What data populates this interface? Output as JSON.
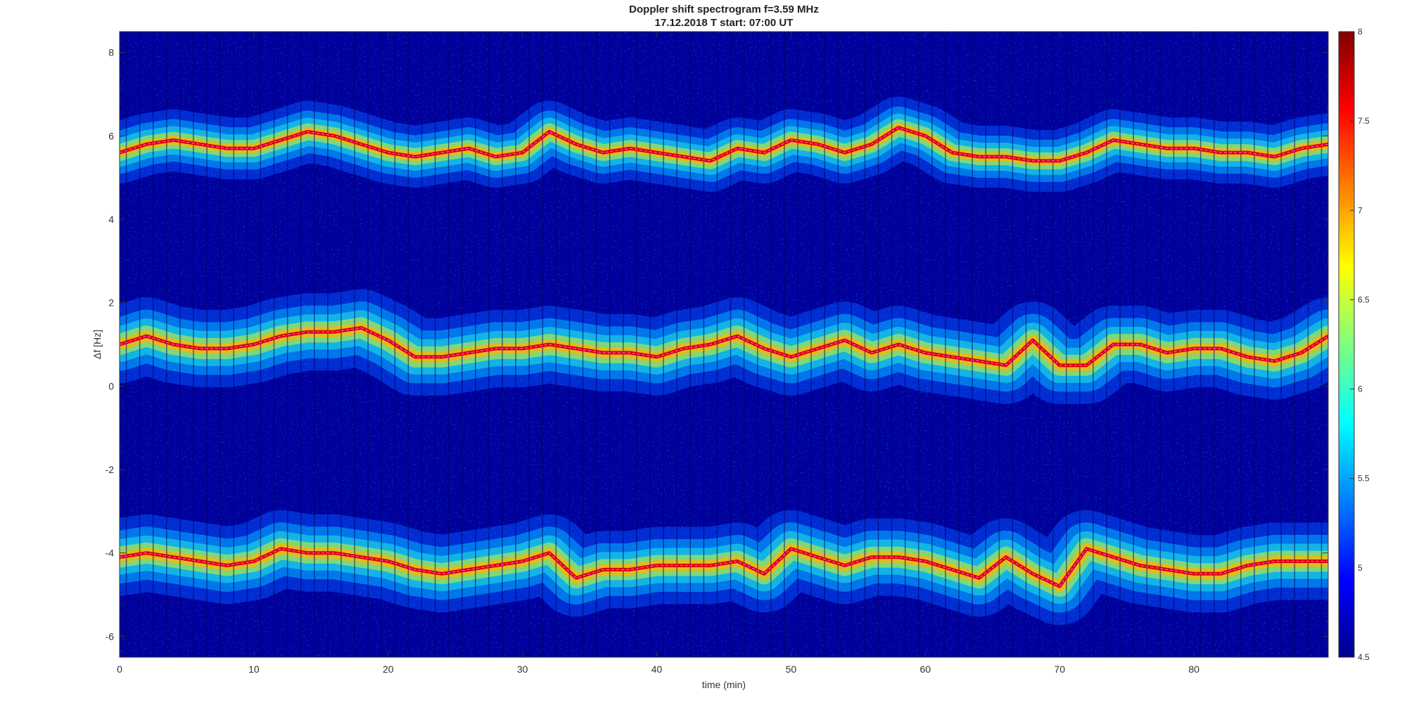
{
  "chart_data": {
    "type": "heatmap",
    "title": "Doppler shift spectrogram f=3.59 MHz",
    "subtitle": "17.12.2018   T start: 07:00 UT",
    "xlabel": "time (min)",
    "ylabel": "Δf [Hz]",
    "xlim": [
      0,
      90
    ],
    "ylim": [
      -6.5,
      8.5
    ],
    "xticks": [
      "0",
      "10",
      "20",
      "30",
      "40",
      "50",
      "60",
      "70",
      "80"
    ],
    "yticks": [
      "-6",
      "-4",
      "-2",
      "0",
      "2",
      "4",
      "6",
      "8"
    ],
    "colormap": "jet",
    "colorbar": {
      "range": [
        4.5,
        8
      ],
      "ticks": [
        "4.5",
        "5",
        "5.5",
        "6",
        "6.5",
        "7",
        "7.5",
        "8"
      ]
    },
    "grid": false,
    "series": [
      {
        "time": [
          0,
          2,
          4,
          6,
          8,
          10,
          12,
          14,
          16,
          18,
          20,
          22,
          24,
          26,
          28,
          30,
          32,
          34,
          36,
          38,
          40,
          42,
          44,
          46,
          48,
          50,
          52,
          54,
          56,
          58,
          60,
          62,
          64,
          66,
          68,
          70,
          72,
          74,
          76,
          78,
          80,
          82,
          84,
          86,
          88,
          90
        ],
        "values": [
          5.6,
          5.8,
          5.9,
          5.8,
          5.7,
          5.7,
          5.9,
          6.1,
          6.0,
          5.8,
          5.6,
          5.5,
          5.6,
          5.7,
          5.5,
          5.6,
          6.1,
          5.8,
          5.6,
          5.7,
          5.6,
          5.5,
          5.4,
          5.7,
          5.6,
          5.9,
          5.8,
          5.6,
          5.8,
          6.2,
          6.0,
          5.6,
          5.5,
          5.5,
          5.4,
          5.4,
          5.6,
          5.9,
          5.8,
          5.7,
          5.7,
          5.6,
          5.6,
          5.5,
          5.7,
          5.8
        ]
      },
      {
        "time": [
          0,
          2,
          4,
          6,
          8,
          10,
          12,
          14,
          16,
          18,
          20,
          22,
          24,
          26,
          28,
          30,
          32,
          34,
          36,
          38,
          40,
          42,
          44,
          46,
          48,
          50,
          52,
          54,
          56,
          58,
          60,
          62,
          64,
          66,
          68,
          70,
          72,
          74,
          76,
          78,
          80,
          82,
          84,
          86,
          88,
          90
        ],
        "values": [
          1.0,
          1.2,
          1.0,
          0.9,
          0.9,
          1.0,
          1.2,
          1.3,
          1.3,
          1.4,
          1.1,
          0.7,
          0.7,
          0.8,
          0.9,
          0.9,
          1.0,
          0.9,
          0.8,
          0.8,
          0.7,
          0.9,
          1.0,
          1.2,
          0.9,
          0.7,
          0.9,
          1.1,
          0.8,
          1.0,
          0.8,
          0.7,
          0.6,
          0.5,
          1.1,
          0.5,
          0.5,
          1.0,
          1.0,
          0.8,
          0.9,
          0.9,
          0.7,
          0.6,
          0.8,
          1.2
        ]
      },
      {
        "time": [
          0,
          2,
          4,
          6,
          8,
          10,
          12,
          14,
          16,
          18,
          20,
          22,
          24,
          26,
          28,
          30,
          32,
          34,
          36,
          38,
          40,
          42,
          44,
          46,
          48,
          50,
          52,
          54,
          56,
          58,
          60,
          62,
          64,
          66,
          68,
          70,
          72,
          74,
          76,
          78,
          80,
          82,
          84,
          86,
          88,
          90
        ],
        "values": [
          -4.1,
          -4.0,
          -4.1,
          -4.2,
          -4.3,
          -4.2,
          -3.9,
          -4.0,
          -4.0,
          -4.1,
          -4.2,
          -4.4,
          -4.5,
          -4.4,
          -4.3,
          -4.2,
          -4.0,
          -4.6,
          -4.4,
          -4.4,
          -4.3,
          -4.3,
          -4.3,
          -4.2,
          -4.5,
          -3.9,
          -4.1,
          -4.3,
          -4.1,
          -4.1,
          -4.2,
          -4.4,
          -4.6,
          -4.1,
          -4.5,
          -4.8,
          -3.9,
          -4.1,
          -4.3,
          -4.4,
          -4.5,
          -4.5,
          -4.3,
          -4.2,
          -4.2,
          -4.2
        ]
      }
    ]
  }
}
